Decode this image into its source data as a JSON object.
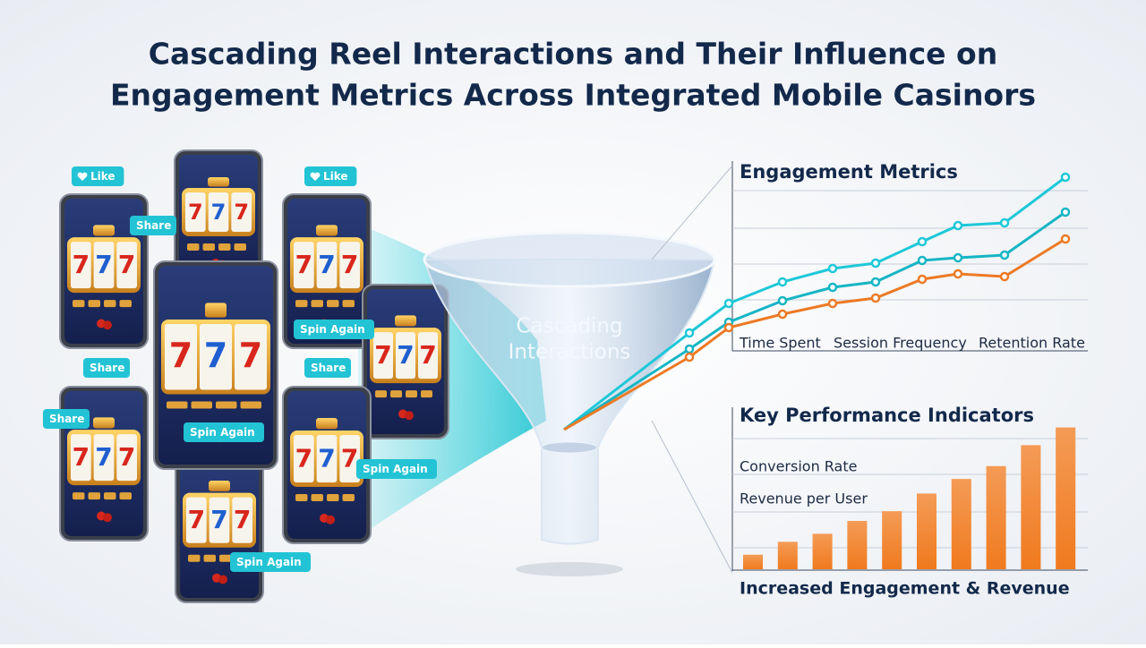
{
  "title": [
    "Cascading Reel Interactions and Their Influence on",
    "Engagement Metrics Across Integrated Mobile Casinors"
  ],
  "phones": [
    {
      "reels": [
        "7",
        "7",
        "7"
      ]
    },
    {
      "reels": [
        "7",
        "7",
        "7"
      ]
    },
    {
      "reels": [
        "7",
        "7",
        "7"
      ]
    },
    {
      "reels": [
        "7",
        "7",
        "7"
      ]
    },
    {
      "reels": [
        "7",
        "7",
        "7"
      ]
    },
    {
      "reels": [
        "7",
        "7",
        "7"
      ]
    },
    {
      "reels": [
        "7",
        "7",
        "7"
      ]
    },
    {
      "reels": [
        "7",
        "7",
        "7"
      ]
    }
  ],
  "badges": [
    "Like",
    "Share",
    "Like",
    "Spin Again",
    "Share",
    "Share",
    "Spin Again",
    "Share",
    "Spin Again",
    "Spin Again"
  ],
  "funnel_label": [
    "Cascading",
    "Interactions"
  ],
  "chart_data": [
    {
      "type": "line",
      "title": "Engagement Metrics",
      "labels": [
        "Time Spent",
        "Session Frequency",
        "Retention Rate"
      ],
      "x": [
        0,
        3.5,
        4.6,
        6.1,
        7.5,
        8.7,
        10,
        11,
        12.3,
        14
      ],
      "xlim": [
        0,
        14
      ],
      "ylim": [
        0,
        100
      ],
      "series": [
        {
          "color": "#1ec8d8",
          "values": [
            0,
            36,
            47,
            55,
            60,
            62,
            70,
            76,
            77,
            94
          ]
        },
        {
          "color": "#17b5c4",
          "values": [
            0,
            30,
            40,
            48,
            53,
            55,
            63,
            64,
            65,
            81
          ]
        },
        {
          "color": "#ec7a25",
          "values": [
            0,
            27,
            38,
            43,
            47,
            49,
            56,
            58,
            57,
            71
          ]
        }
      ]
    },
    {
      "type": "bar",
      "title": "Key Performance Indicators",
      "annotations": [
        "Conversion Rate",
        "Revenue per User"
      ],
      "values": [
        9,
        17,
        22,
        30,
        36,
        47,
        56,
        64,
        77,
        88
      ],
      "color": "#f07a1e",
      "ylim": [
        0,
        100
      ],
      "footer": "Increased Engagement & Revenue"
    }
  ]
}
